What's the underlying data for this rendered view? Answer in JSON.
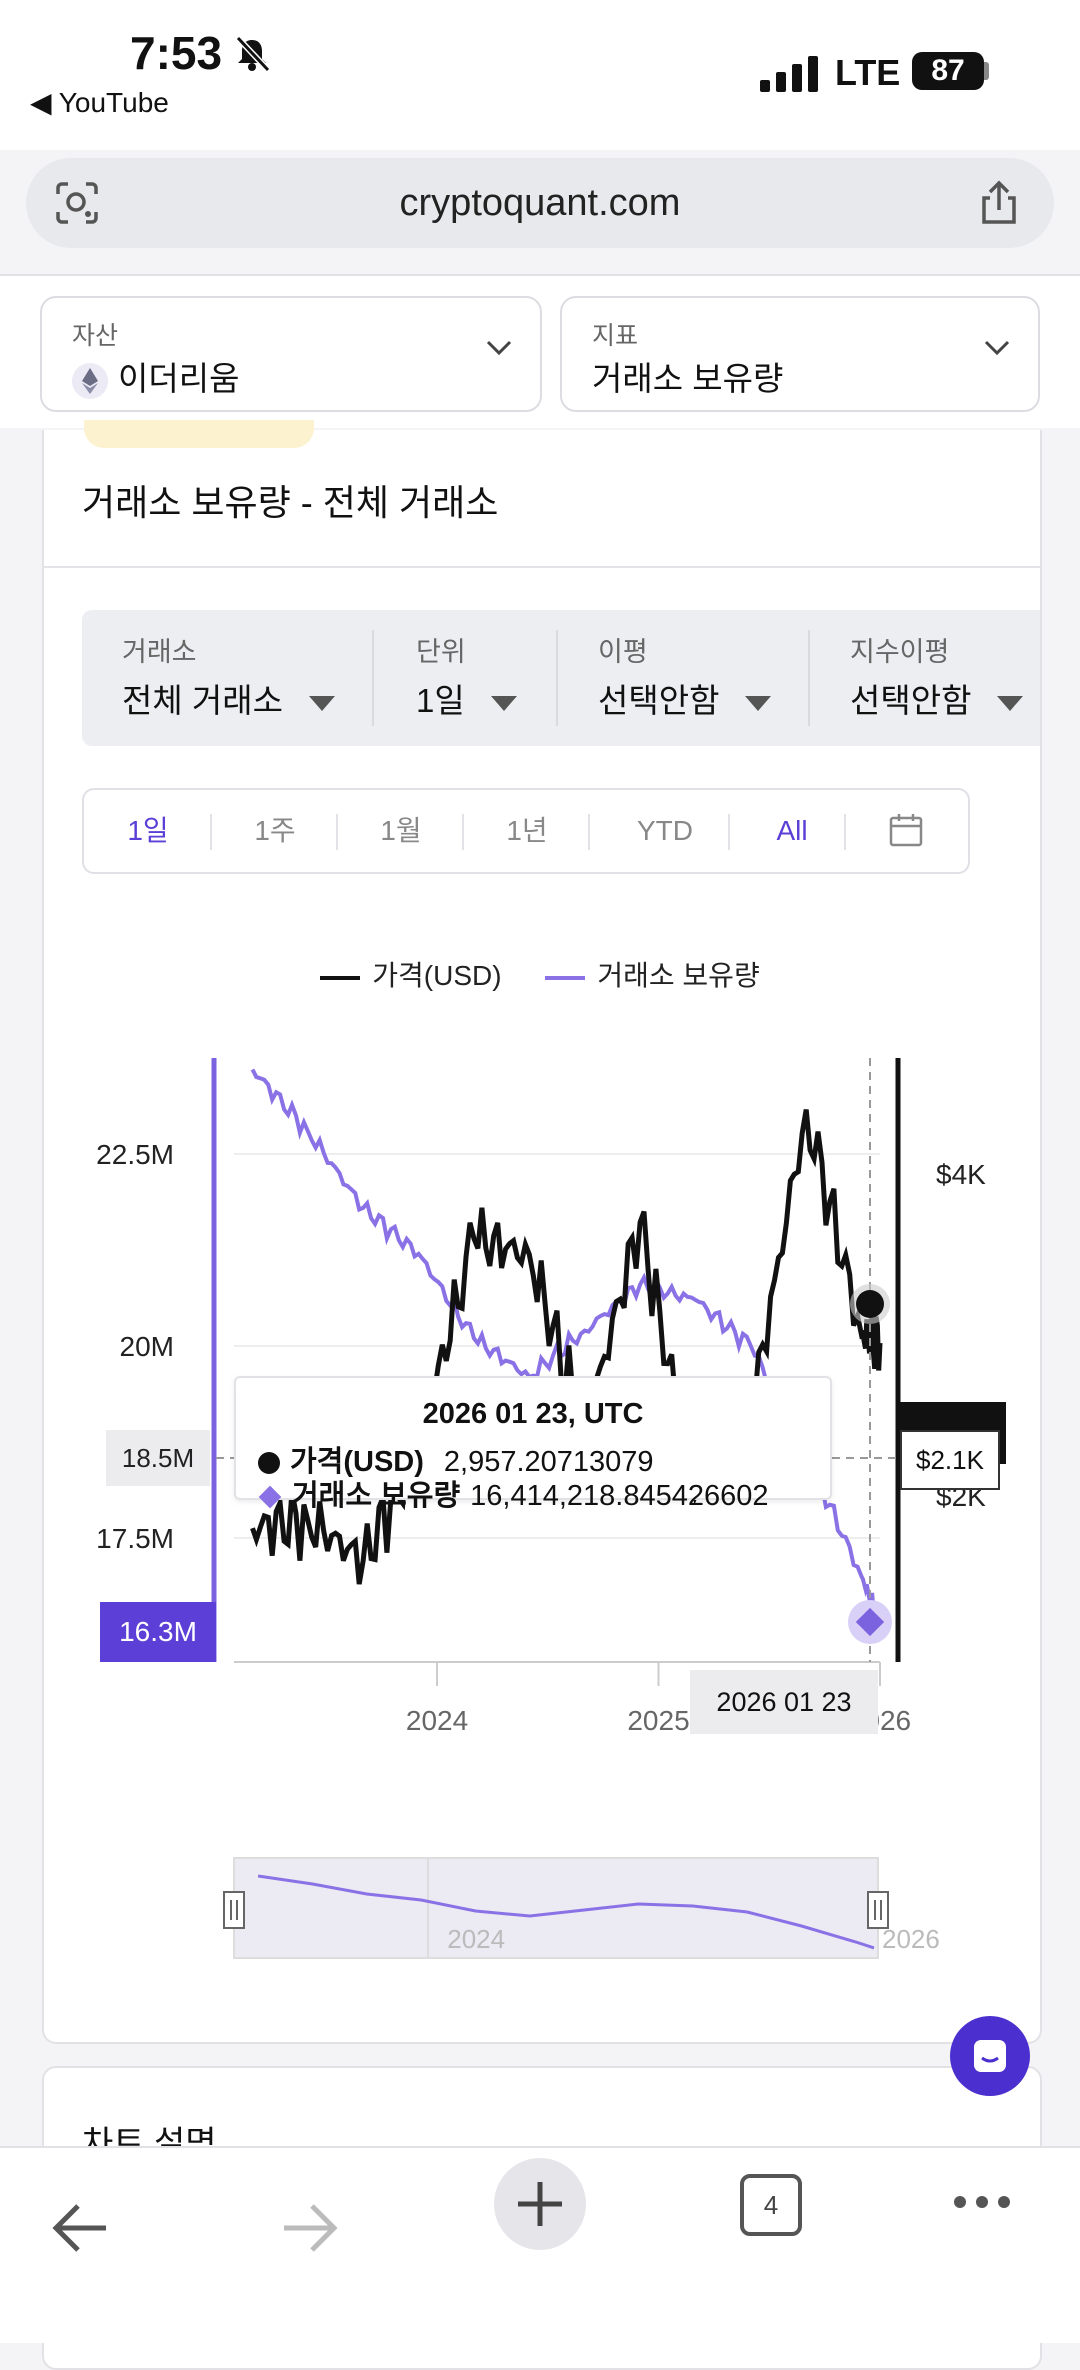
{
  "status_bar": {
    "time": "7:53",
    "back_app": "◀ YouTube",
    "network": "LTE",
    "battery": "87"
  },
  "browser": {
    "url": "cryptoquant.com",
    "tab_count": "4"
  },
  "selectors": {
    "asset": {
      "label": "자산",
      "value": "이더리움"
    },
    "metric": {
      "label": "지표",
      "value": "거래소 보유량"
    }
  },
  "card": {
    "title": "거래소 보유량 - 전체 거래소"
  },
  "filters": [
    {
      "label": "거래소",
      "value": "전체 거래소"
    },
    {
      "label": "단위",
      "value": "1일"
    },
    {
      "label": "이평",
      "value": "선택안함"
    },
    {
      "label": "지수이평",
      "value": "선택안함"
    }
  ],
  "ranges": [
    {
      "label": "1일",
      "active": true
    },
    {
      "label": "1주",
      "active": false
    },
    {
      "label": "1월",
      "active": false
    },
    {
      "label": "1년",
      "active": false
    },
    {
      "label": "YTD",
      "active": false
    },
    {
      "label": "All",
      "active": true
    }
  ],
  "legend": {
    "price": "가격(USD)",
    "reserve": "거래소 보유량"
  },
  "colors": {
    "accent": "#5b3fd6",
    "reserve_line": "#8a72e6",
    "price_line": "#111111"
  },
  "chart_data": {
    "type": "line",
    "x_ticks": [
      "2024",
      "2025",
      "2026"
    ],
    "y_left_ticks": [
      "22.5M",
      "20M",
      "17.5M"
    ],
    "y_right_ticks": [
      "$4K",
      "$2K"
    ],
    "series": [
      {
        "name": "가격(USD)",
        "axis": "right",
        "x": [
          "2023-03",
          "2023-06",
          "2023-09",
          "2023-12",
          "2024-03",
          "2024-06",
          "2024-09",
          "2024-12",
          "2025-03",
          "2025-06",
          "2025-09",
          "2025-12",
          "2026-01"
        ],
        "values": [
          1800,
          1850,
          1600,
          2300,
          3600,
          3500,
          2400,
          3700,
          2000,
          2500,
          4400,
          3000,
          2950
        ]
      },
      {
        "name": "거래소 보유량",
        "axis": "left",
        "x": [
          "2023-03",
          "2023-06",
          "2023-09",
          "2023-12",
          "2024-03",
          "2024-06",
          "2024-09",
          "2024-12",
          "2025-03",
          "2025-06",
          "2025-09",
          "2025-12",
          "2026-01"
        ],
        "values": [
          23600000,
          22800000,
          21800000,
          21200000,
          20100000,
          19600000,
          20200000,
          20800000,
          20600000,
          20000000,
          18600000,
          17000000,
          16414218.85
        ]
      }
    ],
    "tooltip": {
      "date": "2026 01 23, UTC",
      "price_label": "가격(USD)",
      "price_value": "2,957.20713079",
      "reserve_label": "거래소 보유량",
      "reserve_value": "16,414,218.845426602"
    },
    "cursor_labels": {
      "left_value": "18.5M",
      "current_value": "16.3M",
      "right_value": "$2.1K",
      "x_value": "2026 01 23"
    }
  },
  "navigator": {
    "ticks": [
      "2024",
      "2026"
    ]
  },
  "next_section": {
    "title": "차트 설명"
  }
}
